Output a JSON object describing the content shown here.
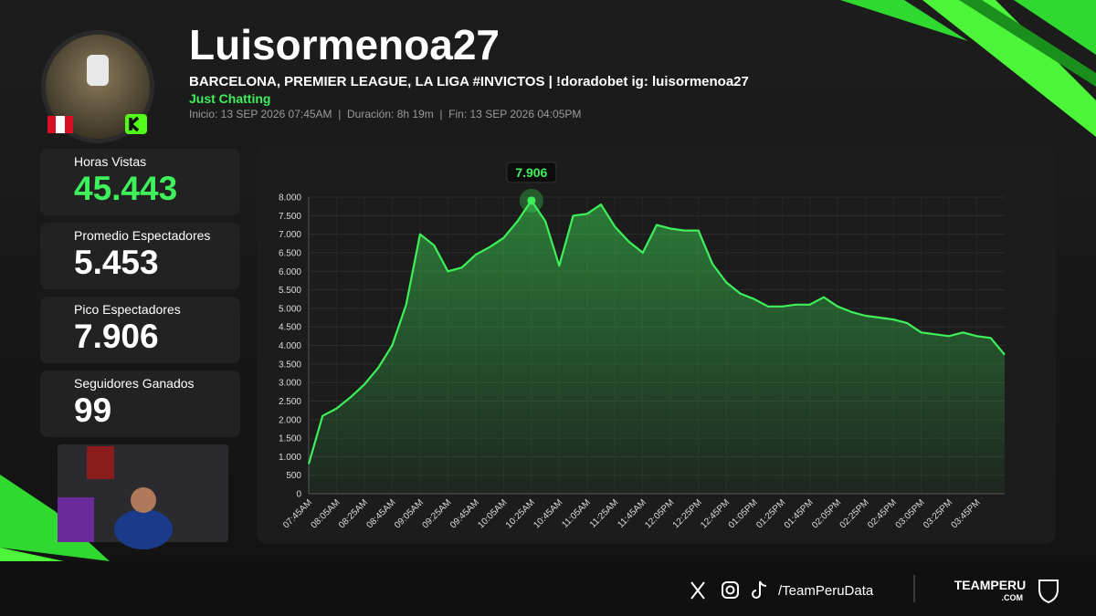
{
  "header": {
    "name": "Luisormenoa27",
    "title": "BARCELONA, PREMIER LEAGUE, LA LIGA #INVICTOS | !doradobet ig: luisormenoa27",
    "category": "Just Chatting",
    "meta": "Inicio: 13 SEP 2026 07:45AM  |  Duración: 8h 19m  |  Fin: 13 SEP 2026 04:05PM"
  },
  "stats": [
    {
      "label": "Horas Vistas",
      "value": "45.443"
    },
    {
      "label": "Promedio Espectadores",
      "value": "5.453"
    },
    {
      "label": "Pico Espectadores",
      "value": "7.906"
    },
    {
      "label": "Seguidores Ganados",
      "value": "99"
    }
  ],
  "chart_data": {
    "type": "line",
    "color": "#3ef05a",
    "grid": true,
    "categories": [
      "07:45AM",
      null,
      "08:05AM",
      null,
      "08:25AM",
      null,
      "08:45AM",
      null,
      "09:05AM",
      null,
      "09:25AM",
      null,
      "09:45AM",
      null,
      "10:05AM",
      null,
      "10:25AM",
      null,
      "10:45AM",
      null,
      "11:05AM",
      null,
      "11:25AM",
      null,
      "11:45AM",
      null,
      "12:05PM",
      null,
      "12:25PM",
      null,
      "12:45PM",
      null,
      "01:05PM",
      null,
      "01:25PM",
      null,
      "01:45PM",
      null,
      "02:05PM",
      null,
      "02:25PM",
      null,
      "02:45PM",
      null,
      "03:05PM",
      null,
      "03:25PM",
      null,
      "03:45PM",
      null,
      null
    ],
    "values": [
      800,
      2100,
      2300,
      2600,
      2950,
      3400,
      4000,
      5100,
      7000,
      6700,
      6000,
      6100,
      6450,
      6650,
      6900,
      7350,
      7906,
      7350,
      6150,
      7500,
      7550,
      7800,
      7200,
      6800,
      6500,
      7250,
      7150,
      7100,
      7100,
      6200,
      5700,
      5400,
      5250,
      5050,
      5050,
      5100,
      5100,
      5300,
      5050,
      4900,
      4800,
      4750,
      4700,
      4600,
      4350,
      4300,
      4250,
      4350,
      4250,
      4200,
      3750
    ],
    "value_labels": [
      null,
      null,
      null,
      null,
      null,
      null,
      null,
      null,
      null,
      null,
      null,
      null,
      null,
      null,
      null,
      null,
      "7.906",
      null,
      null,
      null,
      null,
      null,
      null,
      null,
      null,
      null,
      null,
      null,
      null,
      null,
      null,
      null,
      null,
      null,
      null,
      null,
      null,
      null,
      null,
      null,
      null,
      null,
      null,
      null,
      null,
      null,
      null,
      null,
      null,
      null,
      null
    ],
    "ylim": [
      0,
      8000
    ],
    "yticks": [
      0,
      500,
      {
        "value": 1000,
        "label": "1.000"
      },
      {
        "value": 1500,
        "label": "1.500"
      },
      {
        "value": 2000,
        "label": "2.000"
      },
      {
        "value": 2500,
        "label": "2.500"
      },
      {
        "value": 3000,
        "label": "3.000"
      },
      {
        "value": 3500,
        "label": "3.500"
      },
      {
        "value": 4000,
        "label": "4.000"
      },
      {
        "value": 4500,
        "label": "4.500"
      },
      {
        "value": 5000,
        "label": "5.000"
      },
      {
        "value": 5500,
        "label": "5.500"
      },
      {
        "value": 6000,
        "label": "6.000"
      },
      {
        "value": 6500,
        "label": "6.500"
      },
      {
        "value": 7000,
        "label": "7.000"
      },
      {
        "value": 7500,
        "label": "7.500"
      },
      {
        "value": 8000,
        "label": "8.000"
      }
    ]
  },
  "footer": {
    "handle": "/TeamPeruData",
    "brand": "TEAMPERU",
    "domain": ".COM"
  }
}
